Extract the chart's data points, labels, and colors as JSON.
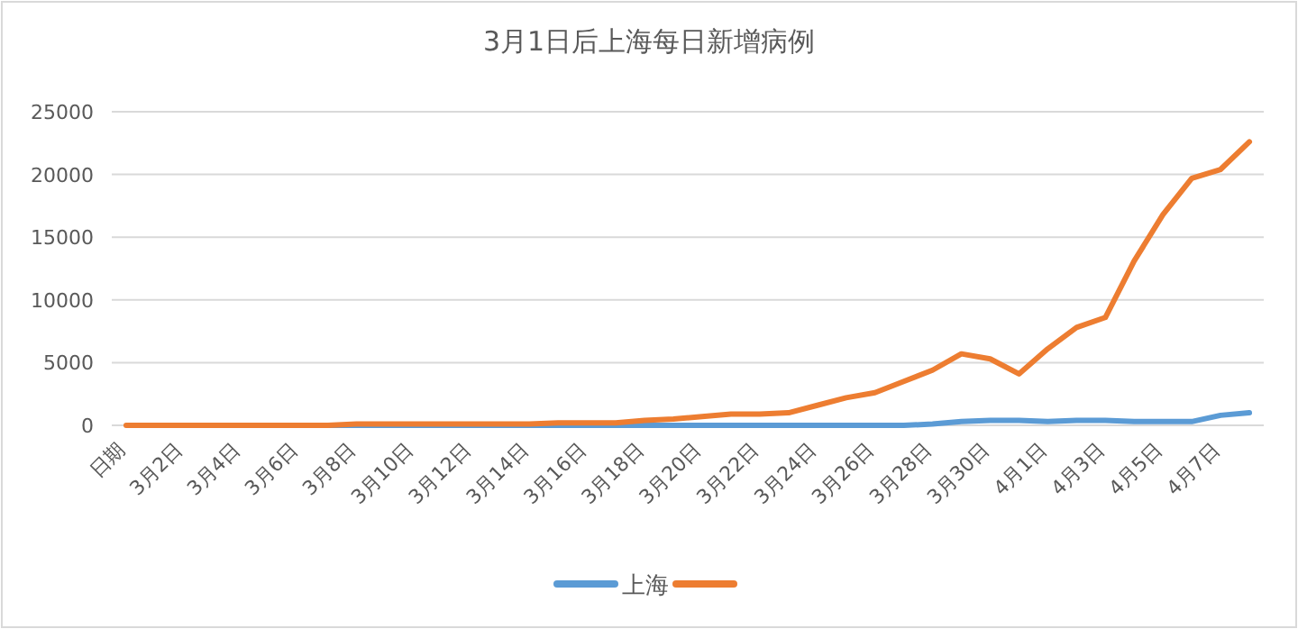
{
  "chart_data": {
    "type": "line",
    "title": "3月1日后上海每日新增病例",
    "categories": [
      "日期",
      null,
      "3月2日",
      null,
      "3月4日",
      null,
      "3月6日",
      null,
      "3月8日",
      null,
      "3月10日",
      null,
      "3月12日",
      null,
      "3月14日",
      null,
      "3月16日",
      null,
      "3月18日",
      null,
      "3月20日",
      null,
      "3月22日",
      null,
      "3月24日",
      null,
      "3月26日",
      null,
      "3月28日",
      null,
      "3月30日",
      null,
      "4月1日",
      null,
      "4月3日",
      null,
      "4月5日",
      null,
      "4月7日",
      null
    ],
    "series": [
      {
        "name": "上海",
        "color": "#5b9bd5",
        "values": [
          null,
          null,
          null,
          null,
          null,
          null,
          null,
          0,
          0,
          0,
          0,
          0,
          0,
          0,
          0,
          0,
          0,
          0,
          0,
          0,
          0,
          0,
          0,
          0,
          0,
          0,
          0,
          0,
          100,
          300,
          400,
          400,
          300,
          400,
          400,
          300,
          300,
          300,
          800,
          1000
        ]
      },
      {
        "color": "#ed7d31",
        "values": [
          0,
          0,
          0,
          0,
          0,
          0,
          0,
          0,
          100,
          100,
          100,
          100,
          100,
          100,
          100,
          200,
          200,
          200,
          400,
          500,
          700,
          900,
          900,
          1000,
          1600,
          2200,
          2600,
          3500,
          4400,
          5700,
          5300,
          4100,
          6100,
          7800,
          8600,
          13100,
          16800,
          19700,
          20400,
          22600
        ]
      }
    ],
    "ylim": [
      0,
      25000
    ],
    "yticks": [
      0,
      5000,
      10000,
      15000,
      20000,
      25000
    ],
    "grid": "y",
    "legend": "bottom",
    "marker": "none",
    "line_style": "solid"
  }
}
